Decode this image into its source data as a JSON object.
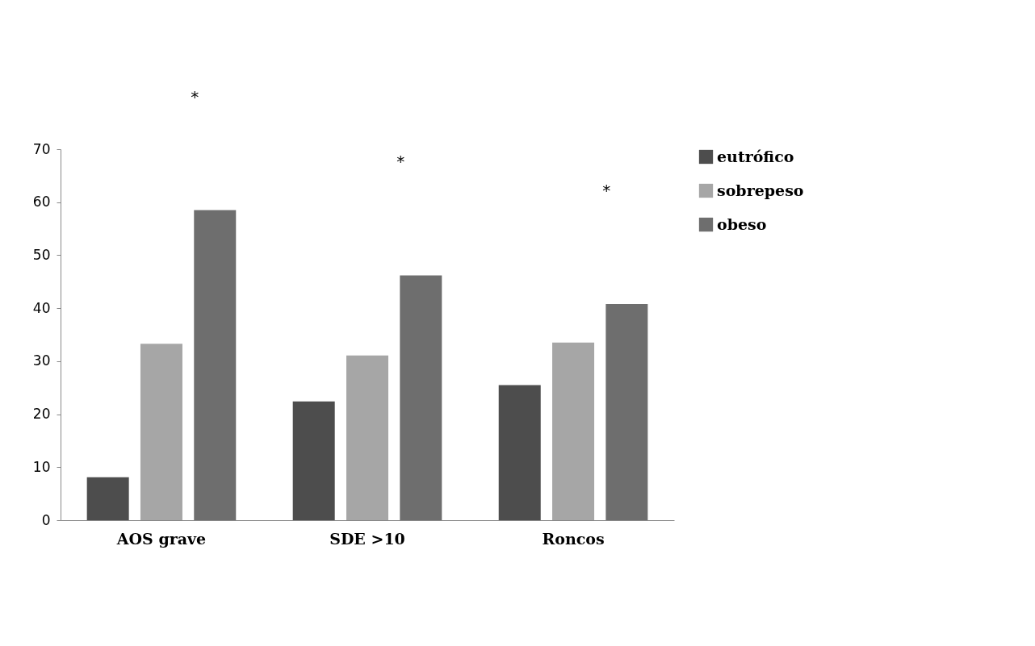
{
  "chart_data": {
    "type": "bar",
    "categories": [
      "AOS grave",
      "SDE >10",
      "Roncos"
    ],
    "series": [
      {
        "name": "eutrófico",
        "color": "#4d4d4d",
        "values": [
          8.1,
          22.4,
          25.5
        ]
      },
      {
        "name": "sobrepeso",
        "color": "#a6a6a6",
        "values": [
          33.3,
          31.1,
          33.5
        ]
      },
      {
        "name": "obeso",
        "color": "#6e6e6e",
        "values": [
          58.5,
          46.2,
          40.8
        ]
      }
    ],
    "ylim": [
      0,
      70
    ],
    "yticks": [
      0,
      10,
      20,
      30,
      40,
      50,
      60,
      70
    ],
    "grid": false,
    "legend": "right",
    "annotations": [
      "*",
      "*",
      "*"
    ]
  }
}
